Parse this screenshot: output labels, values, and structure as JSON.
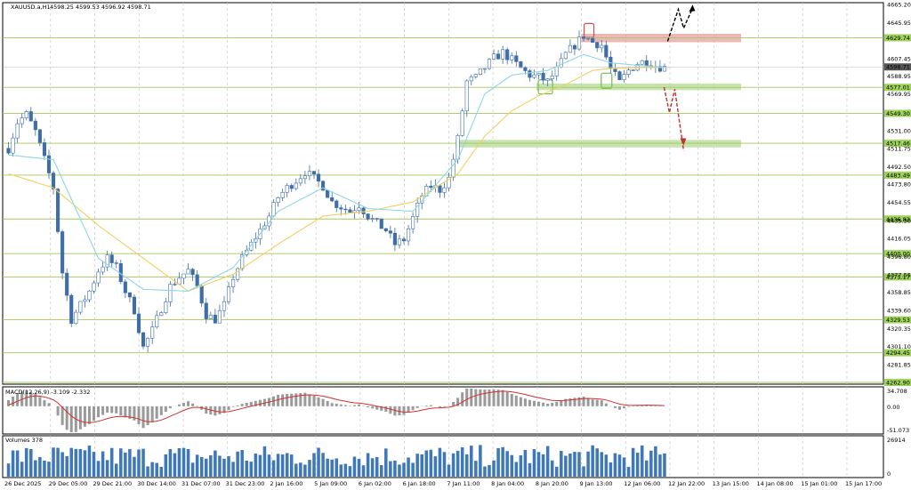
{
  "header": {
    "symbol_label": "XAUUSD.a,H1",
    "ohlc_text": "4598.25 4599.53 4596.92 4598.71"
  },
  "colors": {
    "background": "#ffffff",
    "grid": "#c8c8c8",
    "candle": "#3f6ea6",
    "ma_fast": "#8fd6e6",
    "ma_slow": "#f0d060",
    "level_line": "#a6c75c",
    "level_label_bg": "#9fd35a",
    "resistance_zone": "#e7a0a0",
    "support_zone": "#b8dd9c",
    "macd_hist": "#9a9a9a",
    "macd_signal": "#d43030",
    "volume_bar": "#3f78b8",
    "arrow_up": "#000000",
    "arrow_down": "#c03030",
    "current_price_bg": "#555555"
  },
  "price_axis": {
    "ticks": [
      "4665.20",
      "4645.95",
      "4607.45",
      "4588.95",
      "4569.95",
      "4531.00",
      "4511.75",
      "4492.50",
      "4473.80",
      "4454.55",
      "4435.30",
      "4416.05",
      "4396.80",
      "4377.55",
      "4358.85",
      "4339.60",
      "4320.35",
      "4301.10",
      "4281.85"
    ],
    "current_price": "4598.71"
  },
  "levels": [
    "4629.74",
    "4577.01",
    "4549.30",
    "4517.46",
    "4483.49",
    "4436.83",
    "4400.00",
    "4375.17",
    "4329.53",
    "4294.45",
    "4262.90"
  ],
  "time_axis": [
    "26 Dec 2025",
    "29 Dec 05:00",
    "29 Dec 21:00",
    "30 Dec 14:00",
    "31 Dec 07:00",
    "31 Dec 23:00",
    "2 Jan 16:00",
    "5 Jan 09:00",
    "6 Jan 02:00",
    "6 Jan 18:00",
    "7 Jan 11:00",
    "8 Jan 04:00",
    "8 Jan 20:00",
    "9 Jan 13:00",
    "12 Jan 06:00",
    "12 Jan 22:00",
    "13 Jan 15:00",
    "14 Jan 08:00",
    "15 Jan 01:00",
    "15 Jan 17:00"
  ],
  "macd": {
    "label": "MACD(12,26,9) -3.109 -2.332",
    "ticks": [
      "34.708",
      "0.00",
      "-51.073"
    ]
  },
  "volume": {
    "label": "Volumes 378",
    "ticks": [
      "26914",
      "0"
    ]
  },
  "chart_data": {
    "type": "candlestick",
    "symbol": "XAUUSD.a",
    "timeframe": "H1",
    "ylim": [
      4262.9,
      4665.2
    ],
    "price_path": [
      [
        0,
        4512
      ],
      [
        2,
        4540
      ],
      [
        4,
        4548
      ],
      [
        6,
        4530
      ],
      [
        8,
        4500
      ],
      [
        10,
        4470
      ],
      [
        12,
        4380
      ],
      [
        14,
        4330
      ],
      [
        16,
        4345
      ],
      [
        18,
        4360
      ],
      [
        20,
        4382
      ],
      [
        22,
        4395
      ],
      [
        24,
        4385
      ],
      [
        26,
        4360
      ],
      [
        28,
        4340
      ],
      [
        30,
        4300
      ],
      [
        32,
        4318
      ],
      [
        34,
        4342
      ],
      [
        36,
        4365
      ],
      [
        38,
        4375
      ],
      [
        40,
        4382
      ],
      [
        42,
        4365
      ],
      [
        44,
        4335
      ],
      [
        46,
        4330
      ],
      [
        48,
        4345
      ],
      [
        50,
        4375
      ],
      [
        52,
        4395
      ],
      [
        54,
        4410
      ],
      [
        56,
        4425
      ],
      [
        58,
        4440
      ],
      [
        60,
        4460
      ],
      [
        62,
        4470
      ],
      [
        64,
        4478
      ],
      [
        66,
        4487
      ],
      [
        68,
        4480
      ],
      [
        70,
        4472
      ],
      [
        72,
        4455
      ],
      [
        74,
        4450
      ],
      [
        76,
        4445
      ],
      [
        78,
        4452
      ],
      [
        80,
        4440
      ],
      [
        82,
        4432
      ],
      [
        84,
        4425
      ],
      [
        86,
        4410
      ],
      [
        88,
        4415
      ],
      [
        90,
        4438
      ],
      [
        92,
        4462
      ],
      [
        94,
        4472
      ],
      [
        96,
        4468
      ],
      [
        98,
        4480
      ],
      [
        100,
        4522
      ],
      [
        102,
        4583
      ],
      [
        104,
        4587
      ],
      [
        106,
        4598
      ],
      [
        108,
        4608
      ],
      [
        110,
        4614
      ],
      [
        112,
        4606
      ],
      [
        114,
        4597
      ],
      [
        116,
        4590
      ],
      [
        118,
        4588
      ],
      [
        120,
        4583
      ],
      [
        122,
        4595
      ],
      [
        124,
        4612
      ],
      [
        126,
        4622
      ],
      [
        128,
        4632
      ],
      [
        130,
        4625
      ],
      [
        132,
        4622
      ],
      [
        134,
        4596
      ],
      [
        136,
        4582
      ],
      [
        138,
        4595
      ],
      [
        140,
        4603
      ],
      [
        142,
        4605
      ],
      [
        144,
        4600
      ],
      [
        146,
        4598
      ]
    ],
    "ma_fast": [
      [
        0,
        4505
      ],
      [
        10,
        4500
      ],
      [
        20,
        4395
      ],
      [
        30,
        4362
      ],
      [
        40,
        4360
      ],
      [
        50,
        4385
      ],
      [
        60,
        4445
      ],
      [
        70,
        4470
      ],
      [
        80,
        4448
      ],
      [
        90,
        4445
      ],
      [
        100,
        4500
      ],
      [
        106,
        4570
      ],
      [
        112,
        4590
      ],
      [
        120,
        4595
      ],
      [
        128,
        4612
      ],
      [
        134,
        4603
      ],
      [
        146,
        4598
      ]
    ],
    "ma_slow": [
      [
        0,
        4485
      ],
      [
        10,
        4470
      ],
      [
        20,
        4430
      ],
      [
        30,
        4395
      ],
      [
        40,
        4360
      ],
      [
        50,
        4378
      ],
      [
        60,
        4410
      ],
      [
        70,
        4440
      ],
      [
        80,
        4445
      ],
      [
        90,
        4455
      ],
      [
        100,
        4485
      ],
      [
        106,
        4525
      ],
      [
        112,
        4552
      ],
      [
        118,
        4568
      ],
      [
        124,
        4580
      ],
      [
        130,
        4595
      ],
      [
        134,
        4597
      ],
      [
        140,
        4598
      ],
      [
        146,
        4598
      ]
    ],
    "resistance_zone": [
      4625,
      4634
    ],
    "support_zones": [
      [
        4574,
        4581
      ],
      [
        4513,
        4521
      ]
    ],
    "forecast": {
      "up": {
        "from": 4626,
        "to": 4665
      },
      "down": {
        "from": 4577,
        "to": 4517
      }
    },
    "macd_range": [
      -51.073,
      34.708
    ],
    "volume_max": 26914,
    "last_index": 146
  }
}
